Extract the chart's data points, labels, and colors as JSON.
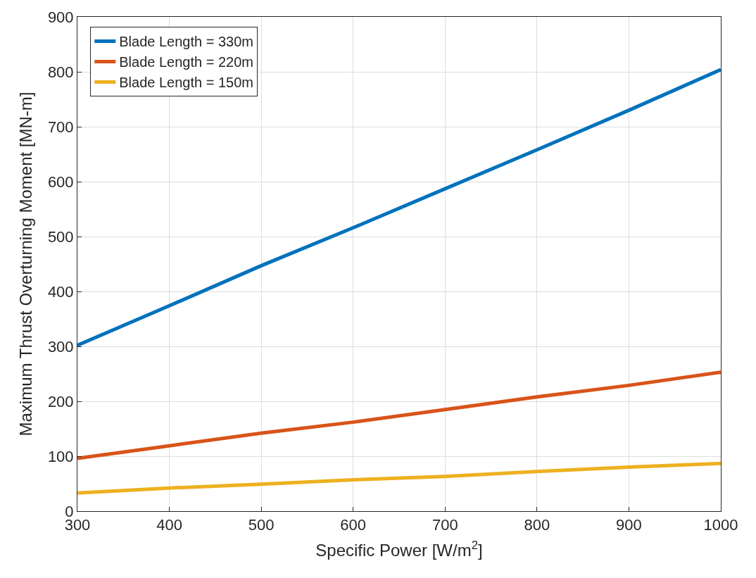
{
  "chart_data": {
    "type": "line",
    "xlabel": "Specific Power [W/m$^{2}$]",
    "ylabel": "Maximum Thrust Overturning Moment [MN-m]",
    "x": [
      300,
      400,
      500,
      600,
      700,
      800,
      900,
      1000
    ],
    "series": [
      {
        "name": "Blade Length = 330m",
        "color": "#0072bd",
        "values": [
          302,
          374,
          447,
          516,
          587,
          658,
          730,
          804
        ]
      },
      {
        "name": "Blade Length = 220m",
        "color": "#d95319",
        "values": [
          96,
          119,
          142,
          162,
          185,
          208,
          229,
          253
        ]
      },
      {
        "name": "Blade Length = 150m",
        "color": "#edb120",
        "values": [
          33,
          42,
          49,
          57,
          63,
          72,
          80,
          87
        ]
      }
    ],
    "xlim": [
      300,
      1000
    ],
    "xticks": [
      300,
      400,
      500,
      600,
      700,
      800,
      900,
      1000
    ],
    "ylim": [
      0,
      900
    ],
    "yticks": [
      0,
      100,
      200,
      300,
      400,
      500,
      600,
      700,
      800,
      900
    ],
    "grid": true,
    "legend": "top left",
    "line_style": "solid",
    "marker": "none"
  }
}
